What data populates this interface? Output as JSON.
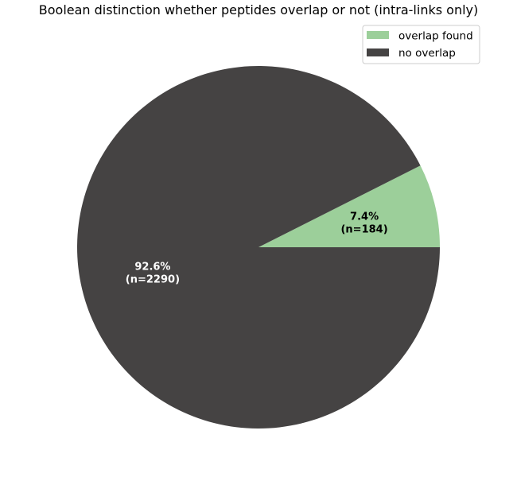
{
  "chart_data": {
    "type": "pie",
    "title": "Boolean distinction whether peptides overlap or not (intra-links only)",
    "start_angle_deg": 0,
    "direction": "counterclockwise",
    "slices": [
      {
        "label": "overlap found",
        "value": 184,
        "percent": 7.4,
        "pct_text": "7.4%",
        "n_text": "(n=184)",
        "color": "#9ccf9a",
        "label_color": "#000000"
      },
      {
        "label": "no overlap",
        "value": 2290,
        "percent": 92.6,
        "pct_text": "92.6%",
        "n_text": "(n=2290)",
        "color": "#454343",
        "label_color": "#ffffff"
      }
    ],
    "legend": {
      "placement": "top-right",
      "entries": [
        "overlap found",
        "no overlap"
      ]
    }
  }
}
